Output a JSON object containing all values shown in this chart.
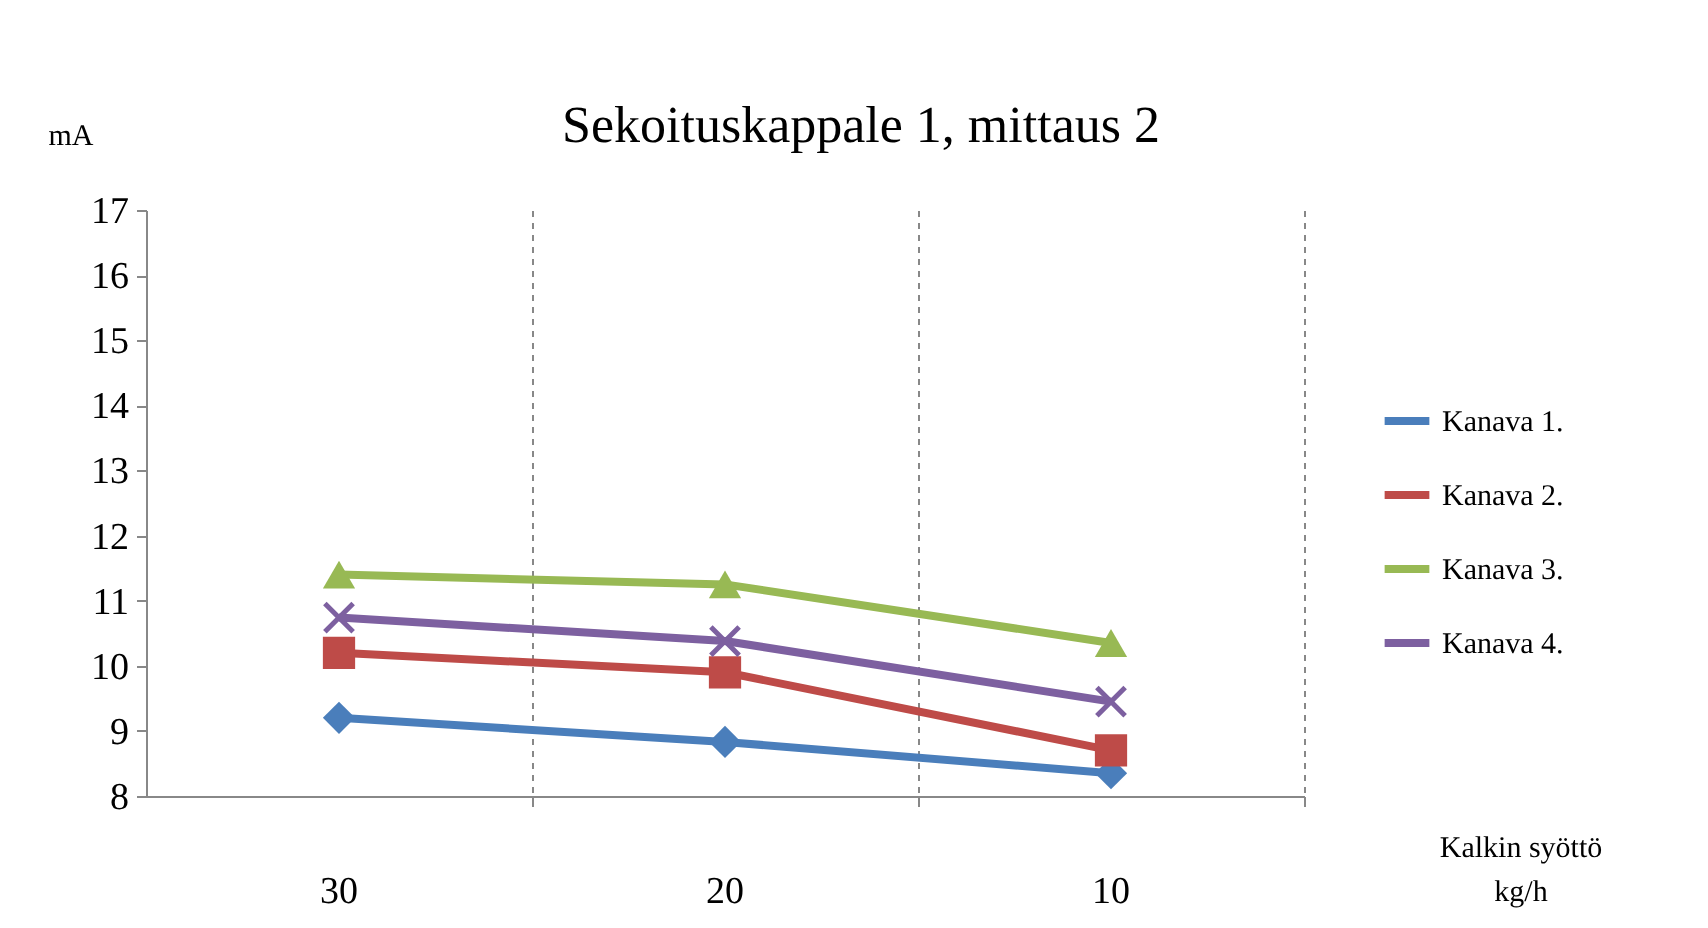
{
  "chart_data": {
    "type": "line",
    "title": "Sekoituskappale 1, mittaus 2",
    "xlabel": "Kalkin syöttö kg/h",
    "ylabel": "mA",
    "categories": [
      "30",
      "20",
      "10"
    ],
    "series": [
      {
        "name": "Kanava 1.",
        "color": "#4a7ebb",
        "marker": "diamond",
        "values": [
          9.2,
          8.83,
          8.35
        ]
      },
      {
        "name": "Kanava 2.",
        "color": "#be4b48",
        "marker": "square",
        "values": [
          10.2,
          9.9,
          8.7
        ]
      },
      {
        "name": "Kanava 3.",
        "color": "#98b954",
        "marker": "triangle",
        "values": [
          11.4,
          11.25,
          10.35
        ]
      },
      {
        "name": "Kanava 4.",
        "color": "#7d60a0",
        "marker": "cross",
        "values": [
          10.74,
          10.38,
          9.45
        ]
      }
    ],
    "ylim": [
      8,
      17
    ],
    "yticks": [
      8,
      9,
      10,
      11,
      12,
      13,
      14,
      15,
      16,
      17
    ],
    "grid": "x",
    "legend": "right",
    "line_style": "solid"
  }
}
